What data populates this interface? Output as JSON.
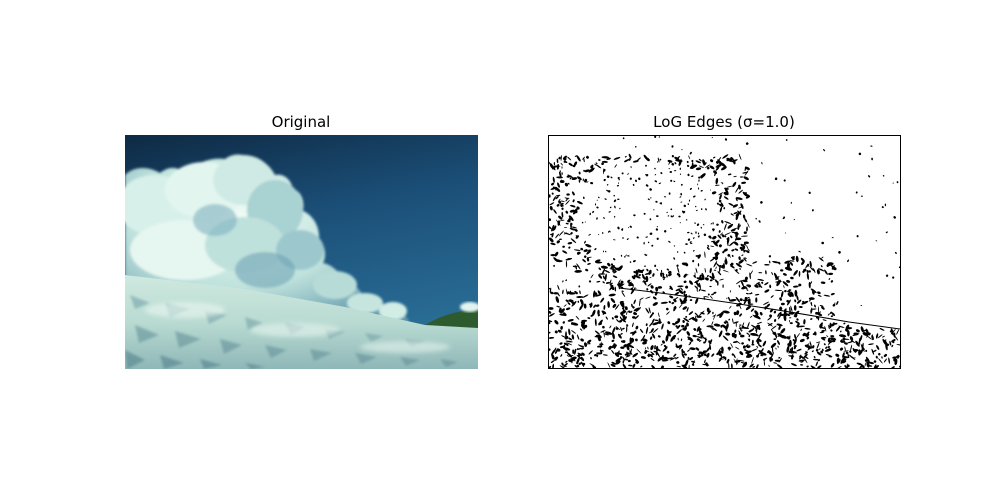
{
  "figure": {
    "panels": [
      {
        "title": "Original"
      },
      {
        "title": "LoG Edges (σ=1.0)"
      }
    ]
  },
  "colors": {
    "sky_top": "#0f2f4a",
    "sky_mid": "#1f5a86",
    "cloud_light": "#e4f4ee",
    "cloud_shadow": "#6ea5b6",
    "snow_light": "#d3ece2",
    "snow_shadow": "#7fa8ae",
    "hill_green": "#2f5a2c",
    "edge_ink": "#000000"
  }
}
